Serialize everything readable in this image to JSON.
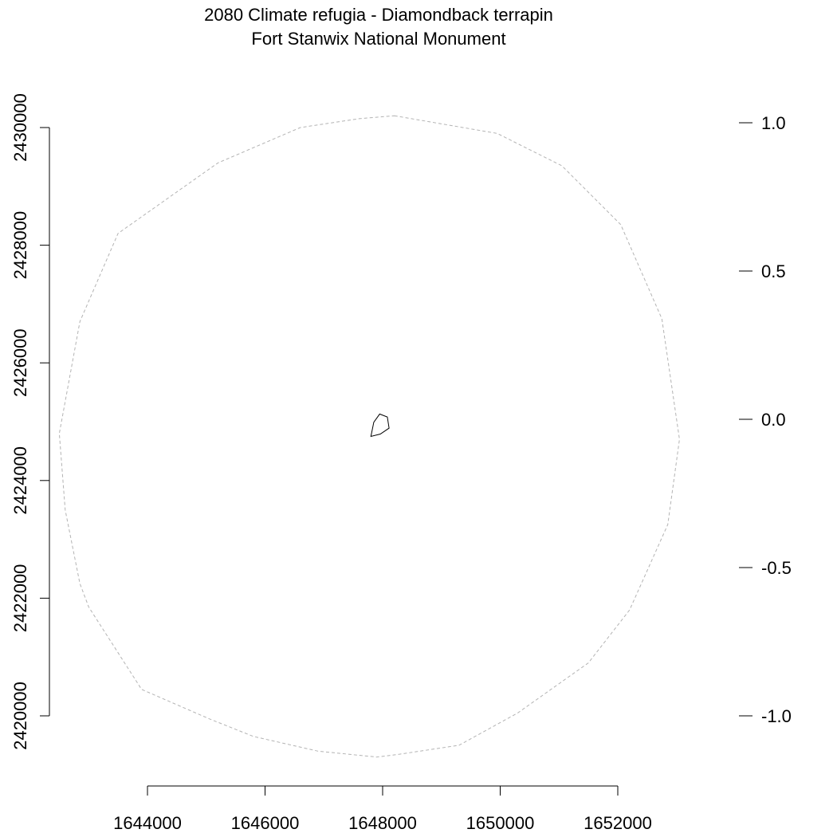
{
  "title": {
    "line1": "2080 Climate refugia - Diamondback terrapin",
    "line2": "Fort Stanwix National Monument"
  },
  "map": {
    "x_axis": {
      "ticks": [
        1644000,
        1646000,
        1648000,
        1650000,
        1652000
      ],
      "tick_labels": [
        "1644000",
        "1646000",
        "1648000",
        "1650000",
        "1652000"
      ]
    },
    "y_axis": {
      "ticks": [
        2420000,
        2422000,
        2424000,
        2426000,
        2428000,
        2430000
      ],
      "tick_labels": [
        "2420000",
        "2422000",
        "2424000",
        "2426000",
        "2428000",
        "2430000"
      ]
    },
    "legend_scale": {
      "ticks": [
        1.0,
        0.5,
        0.0,
        -0.5,
        -1.0
      ],
      "tick_labels": [
        "1.0",
        "0.5",
        "0.0",
        "-0.5",
        "-1.0"
      ]
    },
    "layers": [
      {
        "name": "buffer",
        "style": "dashed",
        "color": "#b3b3b3",
        "coords": [
          [
            1648200,
            2430200
          ],
          [
            1649950,
            2429900
          ],
          [
            1651050,
            2429350
          ],
          [
            1652050,
            2428350
          ],
          [
            1652750,
            2426750
          ],
          [
            1653050,
            2424700
          ],
          [
            1652850,
            2423250
          ],
          [
            1652200,
            2421800
          ],
          [
            1651500,
            2420900
          ],
          [
            1650300,
            2420050
          ],
          [
            1649300,
            2419500
          ],
          [
            1648300,
            2419350
          ],
          [
            1647900,
            2419300
          ],
          [
            1646900,
            2419400
          ],
          [
            1645800,
            2419650
          ],
          [
            1645050,
            2419950
          ],
          [
            1643900,
            2420450
          ],
          [
            1643000,
            2421850
          ],
          [
            1642850,
            2422250
          ],
          [
            1642600,
            2423500
          ],
          [
            1642500,
            2424800
          ],
          [
            1642850,
            2426700
          ],
          [
            1643500,
            2428200
          ],
          [
            1645200,
            2429400
          ],
          [
            1646600,
            2430000
          ],
          [
            1647600,
            2430150
          ]
        ]
      },
      {
        "name": "park boundary",
        "style": "solid",
        "color": "#000000",
        "coords": [
          [
            1647950,
            2425130
          ],
          [
            1648080,
            2425080
          ],
          [
            1648110,
            2424890
          ],
          [
            1647960,
            2424790
          ],
          [
            1647800,
            2424750
          ],
          [
            1647850,
            2424990
          ]
        ]
      }
    ]
  }
}
